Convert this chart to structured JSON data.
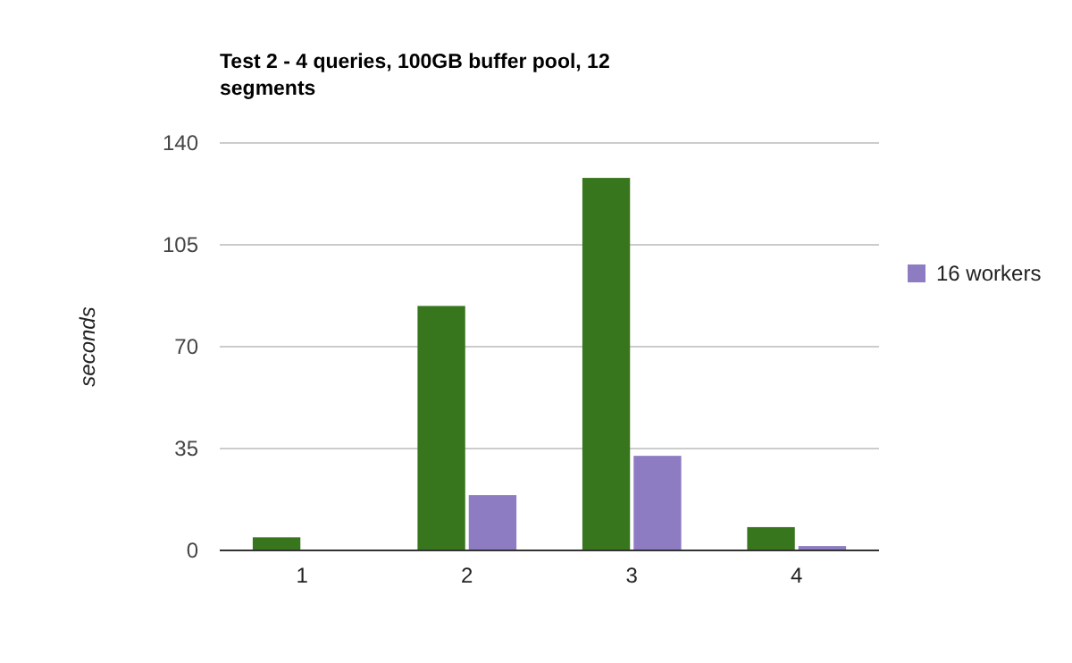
{
  "chart_data": {
    "type": "bar",
    "title": "Test 2 - 4 queries, 100GB buffer pool, 12 segments",
    "ylabel": "seconds",
    "categories": [
      "1",
      "2",
      "3",
      "4"
    ],
    "series": [
      {
        "color": "#38761d",
        "values": [
          4.5,
          84,
          128,
          8
        ]
      },
      {
        "name": "16 workers",
        "color": "#8e7cc3",
        "values": [
          0,
          19,
          32.5,
          1.5
        ]
      }
    ],
    "ylim": [
      0,
      140
    ],
    "yticks": [
      0,
      35,
      70,
      105,
      140
    ],
    "grid": "y",
    "legend": "right"
  }
}
